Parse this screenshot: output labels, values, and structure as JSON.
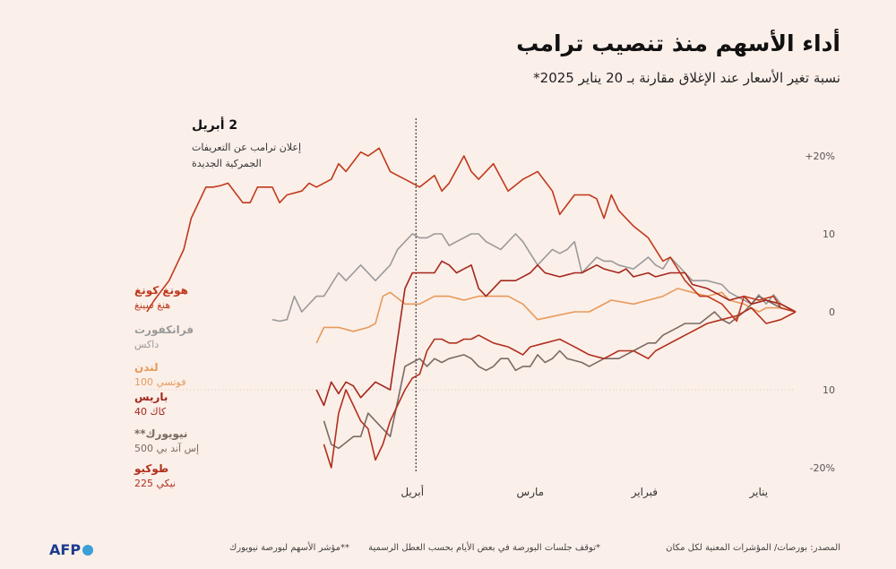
{
  "title": "أداء الأسهم منذ تنصيب ترامب",
  "subtitle": "نسبة تغير الأسعار عند الإغلاق مقارنة بـ 20 يناير 2025*",
  "annotation": {
    "date": "2 أبريل",
    "line1": "إعلان ترامب عن التعريفات",
    "line2": "الجمركية الجديدة"
  },
  "footer": {
    "source": "المصدر: بورصات/ المؤشرات المعنية لكل مكان",
    "note1": "*توقف جلسات البورصة في بعض الأيام بحسب العطل الرسمية",
    "note2": "**مؤشر الأسهم لبورصة نيويورك"
  },
  "logo": "AFP",
  "chart_data": {
    "type": "line",
    "title": "أداء الأسهم منذ تنصيب ترامب",
    "ylabel": "",
    "xlabel": "",
    "ylim": [
      -20,
      20
    ],
    "y_ticks": [
      {
        "value": 20,
        "label": "+20%"
      },
      {
        "value": 10,
        "label": "10"
      },
      {
        "value": 0,
        "label": "0"
      },
      {
        "value": -10,
        "label": "10"
      },
      {
        "value": -20,
        "label": "-20%"
      }
    ],
    "x_ticks": [
      {
        "label": "يناير",
        "day": 10
      },
      {
        "label": "فبراير",
        "day": 41
      },
      {
        "label": "مارس",
        "day": 72
      },
      {
        "label": "أبريل",
        "day": 104
      }
    ],
    "x_axis_direction": "right-to-left",
    "annotation_day": 103,
    "series": [
      {
        "name": "هونغ كونغ",
        "sublabel": "هنغ سينغ",
        "color": "#c0391b",
        "points": [
          [
            0,
            0
          ],
          [
            4,
            0.5
          ],
          [
            6,
            2
          ],
          [
            10,
            1.5
          ],
          [
            14,
            2
          ],
          [
            16,
            -1.2
          ],
          [
            20,
            1
          ],
          [
            24,
            2
          ],
          [
            26,
            2
          ],
          [
            30,
            4
          ],
          [
            34,
            7
          ],
          [
            36,
            6.5
          ],
          [
            40,
            9.5
          ],
          [
            44,
            11
          ],
          [
            48,
            13
          ],
          [
            50,
            15
          ],
          [
            52,
            12
          ],
          [
            54,
            14.5
          ],
          [
            56,
            15
          ],
          [
            60,
            15
          ],
          [
            64,
            12.5
          ],
          [
            66,
            15.5
          ],
          [
            70,
            18
          ],
          [
            72,
            17.5
          ],
          [
            74,
            17
          ],
          [
            78,
            15.5
          ],
          [
            82,
            19
          ],
          [
            86,
            17
          ],
          [
            88,
            18
          ],
          [
            90,
            20
          ],
          [
            94,
            16.5
          ],
          [
            96,
            15.5
          ],
          [
            98,
            17.5
          ],
          [
            102,
            16
          ],
          [
            106,
            17
          ],
          [
            108,
            17.5
          ],
          [
            110,
            18
          ],
          [
            113,
            21
          ],
          [
            116,
            20
          ],
          [
            118,
            20.5
          ],
          [
            122,
            18
          ],
          [
            124,
            19
          ],
          [
            126,
            17
          ],
          [
            130,
            16
          ],
          [
            132,
            16.5
          ],
          [
            134,
            15.5
          ],
          [
            138,
            15
          ],
          [
            140,
            14
          ],
          [
            142,
            16
          ],
          [
            144,
            16
          ],
          [
            146,
            16
          ],
          [
            148,
            14
          ],
          [
            150,
            14
          ],
          [
            154,
            16.5
          ],
          [
            156,
            16.2
          ],
          [
            158,
            16
          ],
          [
            160,
            16
          ],
          [
            162,
            14
          ],
          [
            164,
            12
          ],
          [
            166,
            8
          ],
          [
            168,
            6
          ],
          [
            170,
            4
          ],
          [
            174,
            1.5
          ],
          [
            176,
            0
          ]
        ]
      },
      {
        "name": "فرانكفورت",
        "sublabel": "داكس",
        "color": "#9a9a9a",
        "points": [
          [
            0,
            0
          ],
          [
            4,
            1
          ],
          [
            6,
            2.2
          ],
          [
            8,
            1
          ],
          [
            10,
            2.2
          ],
          [
            12,
            1
          ],
          [
            14,
            1.5
          ],
          [
            18,
            2.5
          ],
          [
            20,
            3.5
          ],
          [
            24,
            4
          ],
          [
            28,
            4
          ],
          [
            30,
            5
          ],
          [
            34,
            7
          ],
          [
            36,
            5.5
          ],
          [
            38,
            6
          ],
          [
            40,
            7
          ],
          [
            44,
            5.5
          ],
          [
            48,
            6
          ],
          [
            50,
            6.5
          ],
          [
            52,
            6.5
          ],
          [
            54,
            7
          ],
          [
            58,
            5
          ],
          [
            60,
            9
          ],
          [
            62,
            8
          ],
          [
            64,
            7.5
          ],
          [
            66,
            8
          ],
          [
            68,
            7
          ],
          [
            70,
            6
          ],
          [
            74,
            9
          ],
          [
            76,
            10
          ],
          [
            80,
            8
          ],
          [
            84,
            9
          ],
          [
            86,
            10
          ],
          [
            88,
            10
          ],
          [
            92,
            9
          ],
          [
            94,
            8.5
          ],
          [
            96,
            10
          ],
          [
            98,
            10
          ],
          [
            100,
            9.5
          ],
          [
            102,
            9.5
          ],
          [
            104,
            10
          ],
          [
            108,
            8
          ],
          [
            110,
            6
          ],
          [
            114,
            4
          ],
          [
            118,
            6
          ],
          [
            120,
            5
          ],
          [
            122,
            4
          ],
          [
            124,
            5
          ],
          [
            128,
            2
          ],
          [
            130,
            2
          ],
          [
            134,
            0
          ],
          [
            136,
            2
          ],
          [
            138,
            -1
          ],
          [
            140,
            -1.2
          ],
          [
            142,
            -1
          ]
        ]
      },
      {
        "name": "لندن",
        "sublabel": "فوتسي 100",
        "color": "#e79a5a",
        "points": [
          [
            0,
            0
          ],
          [
            4,
            0.5
          ],
          [
            8,
            0.5
          ],
          [
            10,
            0
          ],
          [
            14,
            1
          ],
          [
            18,
            1.5
          ],
          [
            20,
            2.5
          ],
          [
            24,
            2
          ],
          [
            28,
            2.5
          ],
          [
            32,
            3
          ],
          [
            36,
            2
          ],
          [
            40,
            1.5
          ],
          [
            44,
            1
          ],
          [
            50,
            1.5
          ],
          [
            56,
            0
          ],
          [
            60,
            0
          ],
          [
            70,
            -1
          ],
          [
            74,
            1
          ],
          [
            78,
            2
          ],
          [
            82,
            2
          ],
          [
            86,
            2
          ],
          [
            90,
            1.5
          ],
          [
            94,
            2
          ],
          [
            98,
            2
          ],
          [
            102,
            1
          ],
          [
            104,
            1
          ],
          [
            106,
            1
          ],
          [
            110,
            2.5
          ],
          [
            112,
            2
          ],
          [
            114,
            -1.5
          ],
          [
            116,
            -2
          ],
          [
            120,
            -2.5
          ],
          [
            124,
            -2
          ],
          [
            128,
            -2
          ],
          [
            130,
            -4
          ]
        ]
      },
      {
        "name": "باريس",
        "sublabel": "كاك 40",
        "color": "#a3271c",
        "points": [
          [
            0,
            0
          ],
          [
            4,
            1
          ],
          [
            8,
            1.5
          ],
          [
            12,
            1
          ],
          [
            14,
            2
          ],
          [
            18,
            1.5
          ],
          [
            20,
            2
          ],
          [
            24,
            3
          ],
          [
            28,
            3.5
          ],
          [
            30,
            5
          ],
          [
            34,
            5
          ],
          [
            38,
            4.5
          ],
          [
            40,
            5
          ],
          [
            44,
            4.5
          ],
          [
            46,
            5.5
          ],
          [
            48,
            5
          ],
          [
            52,
            5.5
          ],
          [
            54,
            6
          ],
          [
            58,
            5
          ],
          [
            60,
            5
          ],
          [
            64,
            4.5
          ],
          [
            68,
            5
          ],
          [
            70,
            6
          ],
          [
            72,
            5
          ],
          [
            74,
            4.5
          ],
          [
            76,
            4
          ],
          [
            80,
            4
          ],
          [
            82,
            3
          ],
          [
            84,
            2
          ],
          [
            86,
            3
          ],
          [
            88,
            6
          ],
          [
            90,
            5.5
          ],
          [
            92,
            5
          ],
          [
            94,
            6
          ],
          [
            96,
            6.5
          ],
          [
            98,
            5
          ],
          [
            100,
            5
          ],
          [
            104,
            5
          ],
          [
            106,
            3
          ],
          [
            110,
            -10
          ],
          [
            114,
            -9
          ],
          [
            118,
            -11
          ],
          [
            120,
            -9.5
          ],
          [
            122,
            -9
          ],
          [
            124,
            -10.5
          ],
          [
            126,
            -9
          ],
          [
            128,
            -12
          ],
          [
            130,
            -10
          ]
        ]
      },
      {
        "name": "نيويورك**",
        "sublabel": "إس آند بي 500",
        "color": "#7a6a62",
        "points": [
          [
            0,
            0
          ],
          [
            4,
            0.5
          ],
          [
            8,
            1.5
          ],
          [
            10,
            2
          ],
          [
            14,
            0
          ],
          [
            18,
            -1.5
          ],
          [
            20,
            -1
          ],
          [
            22,
            0
          ],
          [
            26,
            -1.5
          ],
          [
            30,
            -1.5
          ],
          [
            32,
            -2
          ],
          [
            34,
            -2.5
          ],
          [
            36,
            -3
          ],
          [
            38,
            -4
          ],
          [
            40,
            -4
          ],
          [
            44,
            -5
          ],
          [
            48,
            -6
          ],
          [
            52,
            -6
          ],
          [
            56,
            -7
          ],
          [
            58,
            -6.5
          ],
          [
            62,
            -6
          ],
          [
            64,
            -5
          ],
          [
            66,
            -6
          ],
          [
            68,
            -6.5
          ],
          [
            70,
            -5.5
          ],
          [
            72,
            -7
          ],
          [
            74,
            -7
          ],
          [
            76,
            -7.5
          ],
          [
            78,
            -6
          ],
          [
            80,
            -6
          ],
          [
            82,
            -7
          ],
          [
            84,
            -7.5
          ],
          [
            86,
            -7
          ],
          [
            88,
            -6
          ],
          [
            90,
            -5.5
          ],
          [
            94,
            -6
          ],
          [
            96,
            -6.5
          ],
          [
            98,
            -6
          ],
          [
            100,
            -7
          ],
          [
            102,
            -6
          ],
          [
            104,
            -6.5
          ],
          [
            106,
            -7
          ],
          [
            110,
            -16
          ],
          [
            114,
            -14
          ],
          [
            116,
            -13
          ],
          [
            118,
            -16
          ],
          [
            120,
            -16
          ],
          [
            124,
            -17.5
          ],
          [
            126,
            -17
          ],
          [
            128,
            -14
          ]
        ]
      },
      {
        "name": "طوكيو",
        "sublabel": "نيكي 225",
        "color": "#b0301d",
        "points": [
          [
            0,
            0
          ],
          [
            4,
            -1
          ],
          [
            8,
            -1.5
          ],
          [
            12,
            0.5
          ],
          [
            16,
            -0.5
          ],
          [
            20,
            -1
          ],
          [
            24,
            -1.5
          ],
          [
            28,
            -2.5
          ],
          [
            30,
            -3
          ],
          [
            34,
            -4
          ],
          [
            38,
            -5
          ],
          [
            40,
            -6
          ],
          [
            44,
            -5
          ],
          [
            48,
            -5
          ],
          [
            50,
            -5.5
          ],
          [
            52,
            -6
          ],
          [
            56,
            -5.5
          ],
          [
            58,
            -5
          ],
          [
            60,
            -4.5
          ],
          [
            64,
            -3.5
          ],
          [
            68,
            -4
          ],
          [
            72,
            -4.5
          ],
          [
            74,
            -5.5
          ],
          [
            76,
            -5
          ],
          [
            78,
            -4.5
          ],
          [
            82,
            -4
          ],
          [
            86,
            -3
          ],
          [
            88,
            -3.5
          ],
          [
            90,
            -3.5
          ],
          [
            92,
            -4
          ],
          [
            94,
            -4
          ],
          [
            96,
            -3.5
          ],
          [
            98,
            -3.5
          ],
          [
            100,
            -5
          ],
          [
            102,
            -8
          ],
          [
            104,
            -8.5
          ],
          [
            106,
            -10
          ],
          [
            108,
            -12
          ],
          [
            110,
            -14
          ],
          [
            112,
            -17
          ],
          [
            114,
            -19
          ],
          [
            116,
            -15
          ],
          [
            118,
            -14
          ],
          [
            120,
            -12
          ],
          [
            122,
            -10
          ],
          [
            124,
            -13
          ],
          [
            126,
            -20
          ],
          [
            128,
            -17
          ]
        ]
      }
    ]
  }
}
